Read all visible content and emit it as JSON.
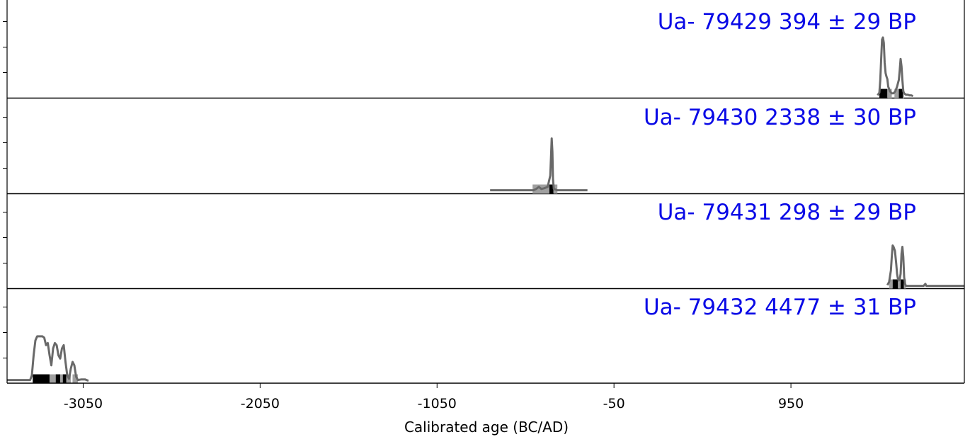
{
  "chart_data": {
    "type": "line",
    "xlabel": "Calibrated age (BC/AD)",
    "xlim": [
      -3480,
      1930
    ],
    "x_ticks": [
      -3050,
      -2050,
      -1050,
      -50,
      950
    ],
    "x_tick_labels": [
      "-3050",
      "-2050",
      "-1050",
      "-50",
      "950"
    ],
    "panels": [
      {
        "label": "Ua- 79429 394 ± 29 BP",
        "ylim": [
          0,
          1
        ],
        "density": [
          [
            1440,
            0.02
          ],
          [
            1450,
            0.06
          ],
          [
            1455,
            0.25
          ],
          [
            1460,
            0.55
          ],
          [
            1465,
            0.85
          ],
          [
            1470,
            0.88
          ],
          [
            1475,
            0.8
          ],
          [
            1480,
            0.5
          ],
          [
            1485,
            0.35
          ],
          [
            1490,
            0.3
          ],
          [
            1495,
            0.26
          ],
          [
            1500,
            0.15
          ],
          [
            1510,
            0.08
          ],
          [
            1520,
            0.05
          ],
          [
            1530,
            0.05
          ],
          [
            1540,
            0.08
          ],
          [
            1550,
            0.15
          ],
          [
            1560,
            0.25
          ],
          [
            1565,
            0.4
          ],
          [
            1570,
            0.56
          ],
          [
            1575,
            0.45
          ],
          [
            1580,
            0.25
          ],
          [
            1585,
            0.08
          ],
          [
            1590,
            0.05
          ],
          [
            1600,
            0.03
          ],
          [
            1610,
            0.03
          ],
          [
            1620,
            0.02
          ],
          [
            1630,
            0.02
          ],
          [
            1640,
            0.01
          ]
        ],
        "range_bars": [
          {
            "from": 1450,
            "to": 1495,
            "level": "68%"
          },
          {
            "from": 1495,
            "to": 1520,
            "level": "95%"
          },
          {
            "from": 1535,
            "to": 1560,
            "level": "95%"
          },
          {
            "from": 1560,
            "to": 1582,
            "level": "68%"
          },
          {
            "from": 1582,
            "to": 1590,
            "level": "95%"
          }
        ]
      },
      {
        "label": "Ua- 79430 2338 ± 30 BP",
        "ylim": [
          0,
          1
        ],
        "density": [
          [
            -750,
            0.03
          ],
          [
            -700,
            0.03
          ],
          [
            -650,
            0.03
          ],
          [
            -600,
            0.03
          ],
          [
            -560,
            0.03
          ],
          [
            -520,
            0.03
          ],
          [
            -505,
            0.03
          ],
          [
            -490,
            0.05
          ],
          [
            -475,
            0.08
          ],
          [
            -460,
            0.05
          ],
          [
            -445,
            0.06
          ],
          [
            -425,
            0.08
          ],
          [
            -410,
            0.25
          ],
          [
            -405,
            0.6
          ],
          [
            -402,
            0.8
          ],
          [
            -398,
            0.6
          ],
          [
            -395,
            0.2
          ],
          [
            -390,
            0.05
          ],
          [
            -370,
            0.03
          ],
          [
            -330,
            0.03
          ],
          [
            -280,
            0.03
          ],
          [
            -230,
            0.03
          ],
          [
            -200,
            0.03
          ]
        ],
        "range_bars": [
          {
            "from": -510,
            "to": -415,
            "level": "95%"
          },
          {
            "from": -415,
            "to": -392,
            "level": "68%"
          },
          {
            "from": -392,
            "to": -370,
            "level": "95%"
          }
        ]
      },
      {
        "label": "Ua- 79431 298 ± 29 BP",
        "ylim": [
          0,
          1
        ],
        "density": [
          [
            1495,
            0.03
          ],
          [
            1505,
            0.08
          ],
          [
            1515,
            0.25
          ],
          [
            1520,
            0.45
          ],
          [
            1525,
            0.62
          ],
          [
            1530,
            0.6
          ],
          [
            1538,
            0.54
          ],
          [
            1545,
            0.35
          ],
          [
            1550,
            0.2
          ],
          [
            1555,
            0.12
          ],
          [
            1560,
            0.1
          ],
          [
            1565,
            0.12
          ],
          [
            1570,
            0.2
          ],
          [
            1575,
            0.5
          ],
          [
            1580,
            0.6
          ],
          [
            1585,
            0.45
          ],
          [
            1590,
            0.15
          ],
          [
            1595,
            0.05
          ],
          [
            1600,
            0.02
          ],
          [
            1650,
            0.02
          ],
          [
            1700,
            0.02
          ],
          [
            1710,
            0.05
          ],
          [
            1715,
            0.02
          ],
          [
            1760,
            0.02
          ],
          [
            1880,
            0.02
          ],
          [
            1930,
            0.02
          ]
        ],
        "range_bars": [
          {
            "from": 1505,
            "to": 1525,
            "level": "95%"
          },
          {
            "from": 1525,
            "to": 1555,
            "level": "68%"
          },
          {
            "from": 1555,
            "to": 1570,
            "level": "95%"
          },
          {
            "from": 1570,
            "to": 1588,
            "level": "68%"
          },
          {
            "from": 1588,
            "to": 1600,
            "level": "95%"
          }
        ]
      },
      {
        "label": "Ua- 79432 4477 ± 31 BP",
        "ylim": [
          0,
          1
        ],
        "density": [
          [
            -3480,
            0.03
          ],
          [
            -3350,
            0.03
          ],
          [
            -3340,
            0.1
          ],
          [
            -3330,
            0.4
          ],
          [
            -3320,
            0.62
          ],
          [
            -3310,
            0.68
          ],
          [
            -3300,
            0.68
          ],
          [
            -3280,
            0.68
          ],
          [
            -3270,
            0.66
          ],
          [
            -3260,
            0.55
          ],
          [
            -3250,
            0.58
          ],
          [
            -3240,
            0.4
          ],
          [
            -3230,
            0.25
          ],
          [
            -3220,
            0.5
          ],
          [
            -3210,
            0.58
          ],
          [
            -3200,
            0.55
          ],
          [
            -3190,
            0.4
          ],
          [
            -3180,
            0.35
          ],
          [
            -3170,
            0.5
          ],
          [
            -3160,
            0.55
          ],
          [
            -3150,
            0.3
          ],
          [
            -3140,
            0.1
          ],
          [
            -3130,
            0.05
          ],
          [
            -3120,
            0.2
          ],
          [
            -3110,
            0.3
          ],
          [
            -3100,
            0.25
          ],
          [
            -3090,
            0.08
          ],
          [
            -3080,
            0.03
          ],
          [
            -3060,
            0.04
          ],
          [
            -3040,
            0.04
          ],
          [
            -3020,
            0.02
          ]
        ],
        "range_bars": [
          {
            "from": -3335,
            "to": -3240,
            "level": "68%"
          },
          {
            "from": -3240,
            "to": -3205,
            "level": "95%"
          },
          {
            "from": -3205,
            "to": -3180,
            "level": "68%"
          },
          {
            "from": -3180,
            "to": -3165,
            "level": "95%"
          },
          {
            "from": -3165,
            "to": -3145,
            "level": "68%"
          },
          {
            "from": -3145,
            "to": -3120,
            "level": "95%"
          },
          {
            "from": -3110,
            "to": -3080,
            "level": "95%"
          }
        ]
      }
    ],
    "colors": {
      "curve": "#696969",
      "label": "#0a0ae6",
      "range_68": "#000000",
      "range_95": "#a0a0a0"
    }
  }
}
